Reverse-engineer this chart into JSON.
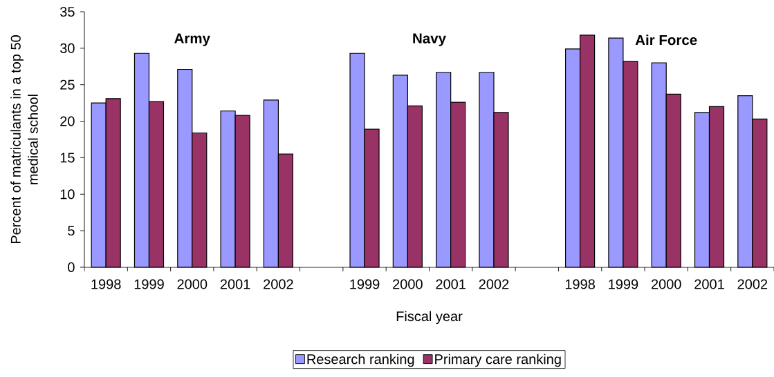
{
  "chart_data": {
    "type": "bar",
    "categories": [
      "1998",
      "1999",
      "2000",
      "2001",
      "2002",
      null,
      "1999",
      "2000",
      "2001",
      "2002",
      null,
      "1998",
      "1999",
      "2000",
      "2001",
      "2002"
    ],
    "series": [
      {
        "name": "Research ranking",
        "color": "#9999ff",
        "values": [
          22.5,
          29.3,
          27.1,
          21.4,
          22.9,
          null,
          29.3,
          26.3,
          26.7,
          26.7,
          null,
          29.9,
          31.4,
          28.0,
          21.2,
          23.5
        ]
      },
      {
        "name": "Primary care ranking",
        "color": "#993366",
        "values": [
          23.1,
          22.7,
          18.4,
          20.8,
          15.5,
          null,
          18.9,
          22.1,
          22.6,
          21.2,
          null,
          31.8,
          28.2,
          23.7,
          22.0,
          20.3
        ]
      }
    ],
    "xlabel": "Fiscal year",
    "ylabel": "Percent of matriculants in a top 50 medical school",
    "ylim": [
      0,
      35
    ],
    "yticks": [
      0,
      5,
      10,
      15,
      20,
      25,
      30,
      35
    ],
    "annotations": [
      "Army",
      "Navy",
      "Air Force"
    ],
    "legend": "bottom"
  }
}
